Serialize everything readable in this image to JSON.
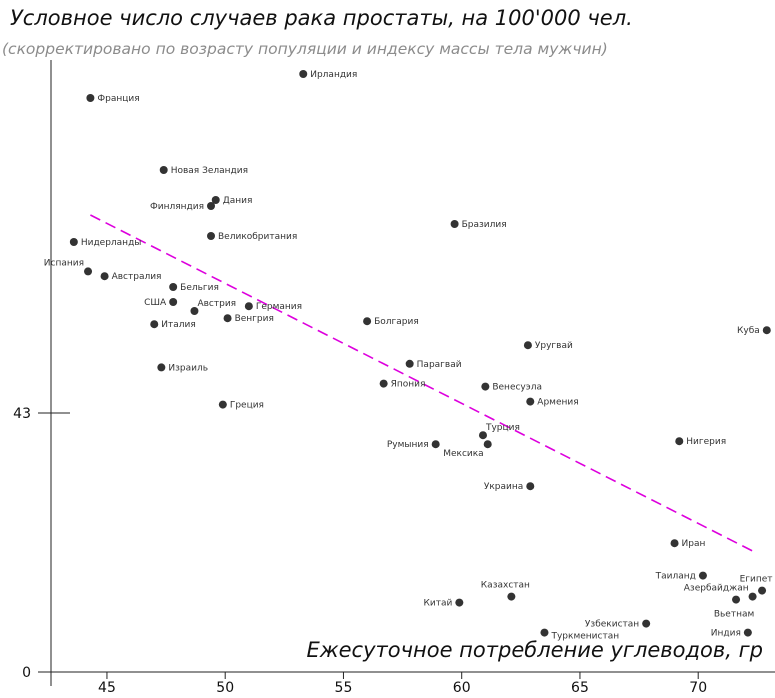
{
  "chart_data": {
    "type": "scatter",
    "title": "Условное число случаев рака простаты, на 100'000 чел.",
    "subtitle": "(скорректировано по возрасту популяции и индексу массы тела мужчин)",
    "xlabel": "Ежесуточное потребление углеводов, гр",
    "ylabel": "",
    "xlim": [
      42,
      73
    ],
    "ylim": [
      0,
      100
    ],
    "x_ticks": [
      "45",
      "50",
      "55",
      "60",
      "65",
      "70"
    ],
    "y_ticks": [
      "0",
      "43"
    ],
    "grid": false,
    "trendline": {
      "color": "#dd00dd",
      "style": "dashed",
      "x": [
        44.3,
        72.3
      ],
      "y": [
        76,
        20
      ]
    },
    "points": [
      {
        "label": "Ирландия",
        "x": 53.3,
        "y": 99.5,
        "pos": "right"
      },
      {
        "label": "Франция",
        "x": 44.3,
        "y": 95.5,
        "pos": "right"
      },
      {
        "label": "Новая Зеландия",
        "x": 47.4,
        "y": 83.5,
        "pos": "right"
      },
      {
        "label": "Дания",
        "x": 49.6,
        "y": 78.5,
        "pos": "right"
      },
      {
        "label": "Финляндия",
        "x": 49.4,
        "y": 77.5,
        "pos": "left"
      },
      {
        "label": "Великобритания",
        "x": 49.4,
        "y": 72.5,
        "pos": "right"
      },
      {
        "label": "Нидерланды",
        "x": 43.6,
        "y": 71.5,
        "pos": "right"
      },
      {
        "label": "Бразилия",
        "x": 59.7,
        "y": 74.5,
        "pos": "right"
      },
      {
        "label": "Испания",
        "x": 44.2,
        "y": 66.6,
        "pos": "left-above"
      },
      {
        "label": "Австралия",
        "x": 44.9,
        "y": 65.8,
        "pos": "right"
      },
      {
        "label": "Бельгия",
        "x": 47.8,
        "y": 64.0,
        "pos": "right"
      },
      {
        "label": "США",
        "x": 47.8,
        "y": 61.5,
        "pos": "left"
      },
      {
        "label": "Австрия",
        "x": 48.7,
        "y": 60.0,
        "pos": "right-above"
      },
      {
        "label": "Германия",
        "x": 51.0,
        "y": 60.8,
        "pos": "right"
      },
      {
        "label": "Венгрия",
        "x": 50.1,
        "y": 58.8,
        "pos": "right"
      },
      {
        "label": "Италия",
        "x": 47.0,
        "y": 57.8,
        "pos": "right"
      },
      {
        "label": "Болгария",
        "x": 56.0,
        "y": 58.3,
        "pos": "right"
      },
      {
        "label": "Куба",
        "x": 72.9,
        "y": 56.8,
        "pos": "left"
      },
      {
        "label": "Уругвай",
        "x": 62.8,
        "y": 54.3,
        "pos": "right"
      },
      {
        "label": "Парагвай",
        "x": 57.8,
        "y": 51.2,
        "pos": "right"
      },
      {
        "label": "Израиль",
        "x": 47.3,
        "y": 50.6,
        "pos": "right"
      },
      {
        "label": "Япония",
        "x": 56.7,
        "y": 47.9,
        "pos": "right"
      },
      {
        "label": "Венесуэла",
        "x": 61.0,
        "y": 47.4,
        "pos": "right"
      },
      {
        "label": "Армения",
        "x": 62.9,
        "y": 44.9,
        "pos": "right"
      },
      {
        "label": "Греция",
        "x": 49.9,
        "y": 44.4,
        "pos": "right"
      },
      {
        "label": "Турция",
        "x": 60.9,
        "y": 39.3,
        "pos": "right-above"
      },
      {
        "label": "Нигерия",
        "x": 69.2,
        "y": 38.3,
        "pos": "right"
      },
      {
        "label": "Румыния",
        "x": 58.9,
        "y": 37.8,
        "pos": "left"
      },
      {
        "label": "Мексика",
        "x": 61.1,
        "y": 37.8,
        "pos": "left-below"
      },
      {
        "label": "Украина",
        "x": 62.9,
        "y": 30.8,
        "pos": "left"
      },
      {
        "label": "Иран",
        "x": 69.0,
        "y": 21.3,
        "pos": "right"
      },
      {
        "label": "Таиланд",
        "x": 70.2,
        "y": 15.9,
        "pos": "left"
      },
      {
        "label": "Египет",
        "x": 72.7,
        "y": 13.4,
        "pos": "above"
      },
      {
        "label": "Азербайджан",
        "x": 72.3,
        "y": 12.4,
        "pos": "left-above"
      },
      {
        "label": "Вьетнам",
        "x": 71.6,
        "y": 11.9,
        "pos": "below"
      },
      {
        "label": "Казахстан",
        "x": 62.1,
        "y": 12.4,
        "pos": "above"
      },
      {
        "label": "Китай",
        "x": 59.9,
        "y": 11.4,
        "pos": "left"
      },
      {
        "label": "Узбекистан",
        "x": 67.8,
        "y": 7.9,
        "pos": "left"
      },
      {
        "label": "Индия",
        "x": 72.1,
        "y": 6.4,
        "pos": "left"
      },
      {
        "label": "Туркменистан",
        "x": 63.5,
        "y": 6.4,
        "pos": "right-below"
      }
    ]
  }
}
